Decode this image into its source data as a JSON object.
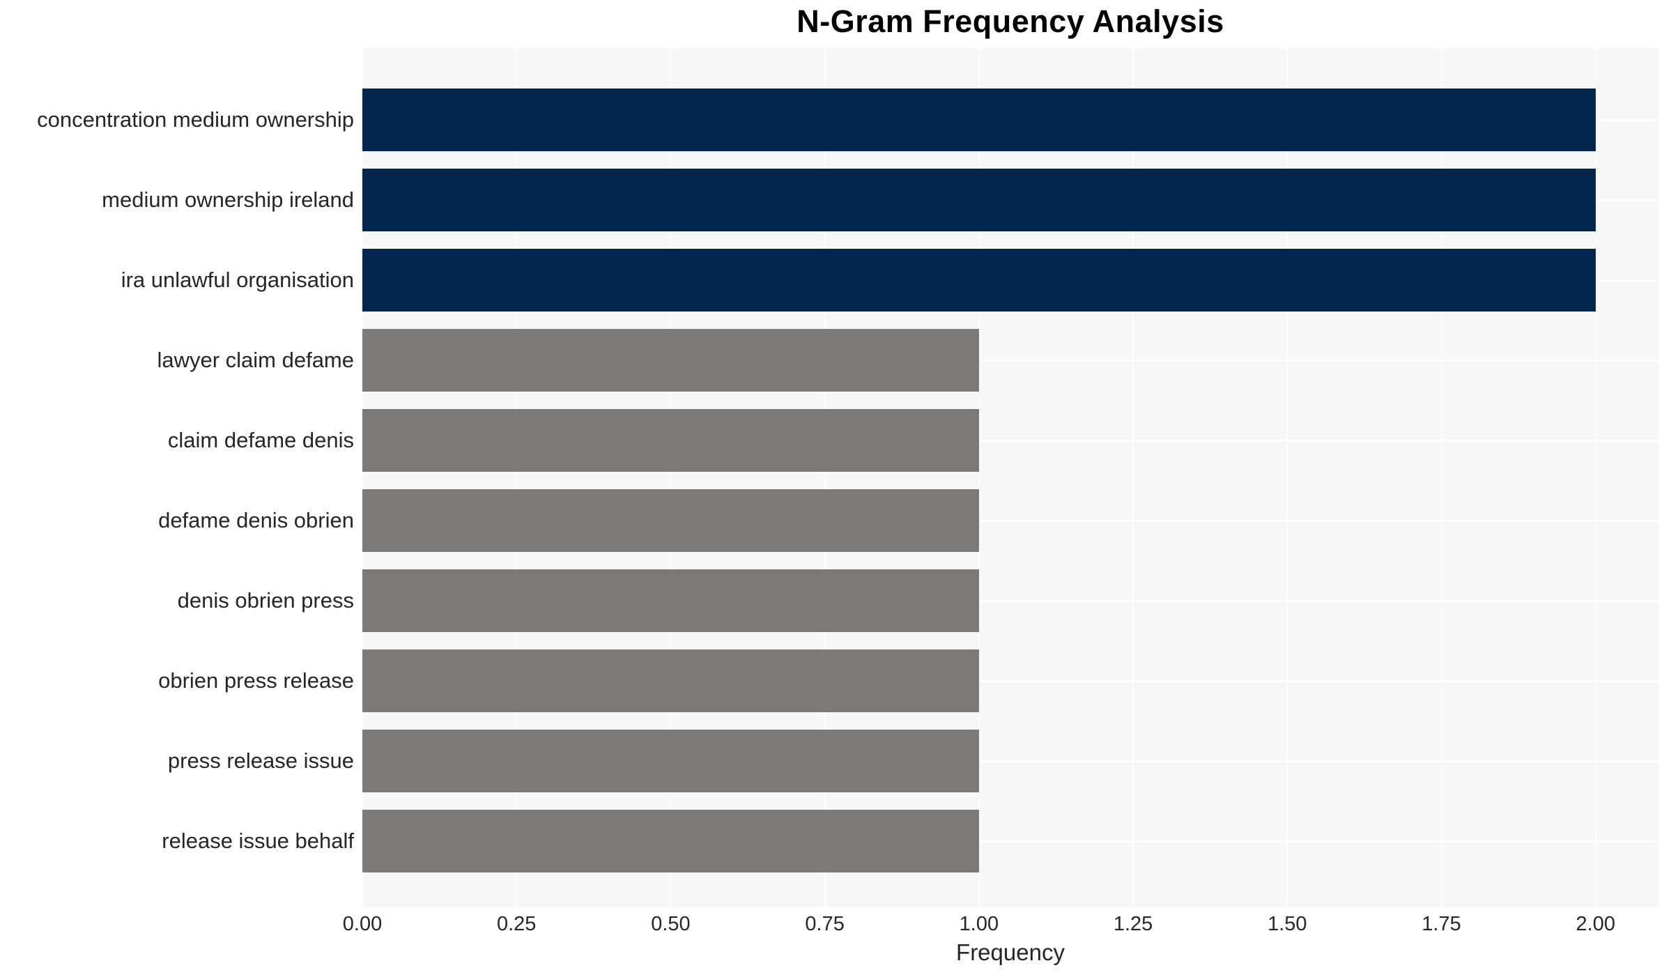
{
  "chart_data": {
    "type": "bar",
    "orientation": "horizontal",
    "title": "N-Gram Frequency Analysis",
    "xlabel": "Frequency",
    "ylabel": "",
    "categories": [
      "concentration medium ownership",
      "medium ownership ireland",
      "ira unlawful organisation",
      "lawyer claim defame",
      "claim defame denis",
      "defame denis obrien",
      "denis obrien press",
      "obrien press release",
      "press release issue",
      "release issue behalf"
    ],
    "values": [
      2,
      2,
      2,
      1,
      1,
      1,
      1,
      1,
      1,
      1
    ],
    "bar_colors": [
      "#02264D",
      "#02264D",
      "#02264D",
      "#7B7A77",
      "#7B7A77",
      "#7B7A77",
      "#7B7A77",
      "#7B7A77",
      "#7B7A77",
      "#7B7A77"
    ],
    "xlim": [
      0,
      2.102
    ],
    "xticks": [
      {
        "value": 0.0,
        "label": "0.00"
      },
      {
        "value": 0.25,
        "label": "0.25"
      },
      {
        "value": 0.5,
        "label": "0.50"
      },
      {
        "value": 0.75,
        "label": "0.75"
      },
      {
        "value": 1.0,
        "label": "1.00"
      },
      {
        "value": 1.25,
        "label": "1.25"
      },
      {
        "value": 1.5,
        "label": "1.50"
      },
      {
        "value": 1.75,
        "label": "1.75"
      },
      {
        "value": 2.0,
        "label": "2.00"
      }
    ],
    "grid": "on",
    "legend": "none",
    "colors": {
      "plot_background": "#F7F7F7",
      "grid_line": "#FFFFFF",
      "title_text": "#000000",
      "axis_text": "#262626"
    }
  }
}
